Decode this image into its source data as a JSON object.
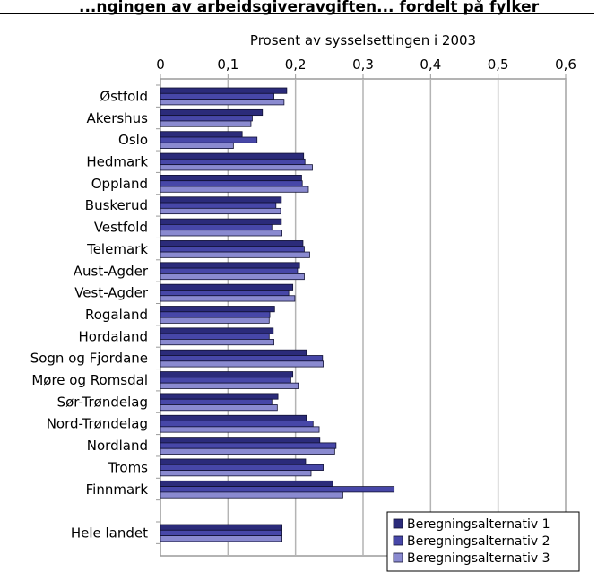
{
  "page_header": "...ngingen av arbeidsgiveravgiften... fordelt på fylker",
  "chart_data": {
    "type": "bar",
    "orientation": "horizontal",
    "title": "Prosent av sysselsettingen i 2003",
    "xlim": [
      0,
      0.6
    ],
    "x_ticks": [
      "0",
      "0,1",
      "0,2",
      "0,3",
      "0,4",
      "0,5",
      "0,6"
    ],
    "x_tick_values": [
      0,
      0.1,
      0.2,
      0.3,
      0.4,
      0.5,
      0.6
    ],
    "axis_position": "top",
    "grid": true,
    "legend_position": "bottom-right",
    "categories": [
      "Østfold",
      "Akershus",
      "Oslo",
      "Hedmark",
      "Oppland",
      "Buskerud",
      "Vestfold",
      "Telemark",
      "Aust-Agder",
      "Vest-Agder",
      "Rogaland",
      "Hordaland",
      "Sogn og Fjordane",
      "Møre og Romsdal",
      "Sør-Trøndelag",
      "Nord-Trøndelag",
      "Nordland",
      "Troms",
      "Finnmark",
      "",
      "Hele landet"
    ],
    "series": [
      {
        "name": "Beregningsalternativ 1",
        "color": "#2b2b7a",
        "values": [
          0.187,
          0.151,
          0.121,
          0.212,
          0.209,
          0.179,
          0.179,
          0.211,
          0.206,
          0.196,
          0.169,
          0.167,
          0.216,
          0.196,
          0.174,
          0.216,
          0.236,
          0.215,
          0.255,
          null,
          0.18
        ]
      },
      {
        "name": "Beregningsalternativ 2",
        "color": "#4747a8",
        "values": [
          0.168,
          0.136,
          0.143,
          0.214,
          0.21,
          0.171,
          0.165,
          0.213,
          0.203,
          0.19,
          0.162,
          0.161,
          0.24,
          0.193,
          0.165,
          0.226,
          0.26,
          0.241,
          0.346,
          null,
          0.18
        ]
      },
      {
        "name": "Beregningsalternativ 3",
        "color": "#8a8ad0",
        "values": [
          0.183,
          0.134,
          0.108,
          0.225,
          0.219,
          0.178,
          0.18,
          0.221,
          0.213,
          0.199,
          0.161,
          0.168,
          0.241,
          0.204,
          0.173,
          0.235,
          0.258,
          0.223,
          0.27,
          null,
          0.18
        ]
      }
    ]
  }
}
